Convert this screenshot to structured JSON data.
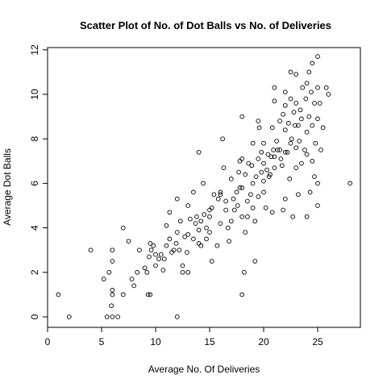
{
  "chart_data": {
    "type": "scatter",
    "title": "Scatter Plot of No. of Dot Balls vs No. of Deliveries",
    "xlabel": "Average No. Of Deliveries",
    "ylabel": "Average Dot Balls",
    "xlim": [
      0,
      28
    ],
    "ylim": [
      0,
      12
    ],
    "x_ticks": [
      "0",
      "5",
      "10",
      "15",
      "20",
      "25"
    ],
    "y_ticks": [
      "0",
      "2",
      "4",
      "6",
      "8",
      "10",
      "12"
    ],
    "grid": false,
    "legend": "none",
    "marker": "open-circle",
    "points": [
      [
        1,
        1
      ],
      [
        2,
        0
      ],
      [
        4,
        3
      ],
      [
        5.2,
        1.7
      ],
      [
        5.5,
        0
      ],
      [
        5.7,
        2
      ],
      [
        5.9,
        0.5
      ],
      [
        6,
        1
      ],
      [
        6,
        2.5
      ],
      [
        6,
        3
      ],
      [
        6,
        1.2
      ],
      [
        6,
        0
      ],
      [
        6.5,
        0
      ],
      [
        7,
        4
      ],
      [
        7,
        1
      ],
      [
        7.5,
        3.4
      ],
      [
        7.8,
        1.7
      ],
      [
        8,
        1.4
      ],
      [
        8.3,
        2
      ],
      [
        8.5,
        3
      ],
      [
        9,
        2.2
      ],
      [
        9.2,
        2
      ],
      [
        9.3,
        1
      ],
      [
        9.4,
        2.7
      ],
      [
        9.5,
        1
      ],
      [
        9.5,
        3.3
      ],
      [
        9.6,
        3
      ],
      [
        9.8,
        3.2
      ],
      [
        10,
        2.8
      ],
      [
        10,
        2.3
      ],
      [
        10.3,
        2.6
      ],
      [
        10.5,
        2.8
      ],
      [
        10.7,
        2.1
      ],
      [
        10.8,
        2.6
      ],
      [
        11,
        3.2
      ],
      [
        11,
        4.1
      ],
      [
        11.3,
        4.7
      ],
      [
        11.3,
        3.5
      ],
      [
        11.5,
        2.9
      ],
      [
        11.7,
        3
      ],
      [
        11.9,
        3.3
      ],
      [
        12,
        3.8
      ],
      [
        12,
        5.3
      ],
      [
        12,
        0
      ],
      [
        12.2,
        3
      ],
      [
        12.3,
        4.3
      ],
      [
        12.5,
        2.3
      ],
      [
        12.5,
        2
      ],
      [
        12.7,
        3.6
      ],
      [
        12.9,
        2.9
      ],
      [
        13,
        2
      ],
      [
        13,
        3.7
      ],
      [
        13,
        5
      ],
      [
        13.2,
        4.4
      ],
      [
        13.5,
        5.6
      ],
      [
        13.5,
        3.5
      ],
      [
        13.7,
        4.2
      ],
      [
        13.8,
        4.5
      ],
      [
        14,
        3.9
      ],
      [
        14,
        3.3
      ],
      [
        14,
        7.4
      ],
      [
        14.2,
        4.3
      ],
      [
        14.2,
        3.2
      ],
      [
        14.4,
        6
      ],
      [
        14.5,
        4.6
      ],
      [
        14.7,
        3.5
      ],
      [
        14.7,
        4
      ],
      [
        15,
        4.8
      ],
      [
        15,
        4.5
      ],
      [
        15,
        3.8
      ],
      [
        15.2,
        4.9
      ],
      [
        15.2,
        2.5
      ],
      [
        15.4,
        5.5
      ],
      [
        15.7,
        3.2
      ],
      [
        15.8,
        5.3
      ],
      [
        16,
        5.6
      ],
      [
        16,
        4.2
      ],
      [
        16,
        5.5
      ],
      [
        16.2,
        8
      ],
      [
        16.3,
        6.7
      ],
      [
        16.5,
        4.8
      ],
      [
        16.5,
        5.2
      ],
      [
        16.7,
        4
      ],
      [
        16.8,
        3.4
      ],
      [
        17,
        4.3
      ],
      [
        17,
        6.2
      ],
      [
        17.2,
        5.3
      ],
      [
        17.3,
        4.8
      ],
      [
        17.5,
        5.6
      ],
      [
        17.6,
        5
      ],
      [
        17.7,
        6.5
      ],
      [
        17.8,
        5.8
      ],
      [
        17.8,
        7
      ],
      [
        18,
        4.5
      ],
      [
        18,
        5.8
      ],
      [
        18,
        7.1
      ],
      [
        18,
        9
      ],
      [
        18.2,
        2
      ],
      [
        18,
        1
      ],
      [
        18.3,
        3.8
      ],
      [
        18.3,
        6.4
      ],
      [
        18.5,
        4.5
      ],
      [
        18.5,
        5.2
      ],
      [
        18.6,
        6.9
      ],
      [
        18.8,
        5.5
      ],
      [
        18.9,
        6.8
      ],
      [
        19,
        7.8
      ],
      [
        19,
        4.9
      ],
      [
        19,
        6
      ],
      [
        19.2,
        4.3
      ],
      [
        19.2,
        2.5
      ],
      [
        19.3,
        6.3
      ],
      [
        19.5,
        8.8
      ],
      [
        19.5,
        7.1
      ],
      [
        19.5,
        5.4
      ],
      [
        19.6,
        8.5
      ],
      [
        19.8,
        6.5
      ],
      [
        19.8,
        7.4
      ],
      [
        20,
        6.9
      ],
      [
        20,
        5.6
      ],
      [
        20,
        6.1
      ],
      [
        20,
        7.8
      ],
      [
        20.2,
        4.9
      ],
      [
        20.3,
        6.6
      ],
      [
        20.4,
        7.3
      ],
      [
        20.5,
        6.3
      ],
      [
        20.6,
        6.4
      ],
      [
        20.7,
        7.2
      ],
      [
        20.8,
        8.5
      ],
      [
        20.8,
        4.7
      ],
      [
        20.9,
        7.5
      ],
      [
        21,
        7.2
      ],
      [
        21,
        6.7
      ],
      [
        21,
        9.7
      ],
      [
        21,
        10.3
      ],
      [
        21.2,
        7.9
      ],
      [
        21.3,
        7.5
      ],
      [
        21.5,
        7.5
      ],
      [
        21.5,
        8.8
      ],
      [
        21.6,
        7.1
      ],
      [
        21.7,
        6.8
      ],
      [
        21.8,
        9.1
      ],
      [
        21.8,
        4.8
      ],
      [
        22,
        7.4
      ],
      [
        22,
        8.4
      ],
      [
        22,
        9.5
      ],
      [
        22,
        10.1
      ],
      [
        22,
        5.3
      ],
      [
        22.2,
        7.4
      ],
      [
        22.3,
        8.7
      ],
      [
        22.4,
        6.2
      ],
      [
        22.5,
        7.8
      ],
      [
        22.5,
        9.8
      ],
      [
        22.5,
        11
      ],
      [
        22.6,
        8
      ],
      [
        22.7,
        4.5
      ],
      [
        22.8,
        9.2
      ],
      [
        22.9,
        8.6
      ],
      [
        23,
        7.6
      ],
      [
        23,
        6.7
      ],
      [
        23,
        9.6
      ],
      [
        23,
        10.9
      ],
      [
        23.2,
        8.6
      ],
      [
        23.2,
        5.5
      ],
      [
        23.3,
        7.9
      ],
      [
        23.4,
        9.3
      ],
      [
        23.5,
        8.9
      ],
      [
        23.5,
        6.9
      ],
      [
        23.6,
        10.3
      ],
      [
        23.8,
        7.5
      ],
      [
        23.9,
        9.8
      ],
      [
        24,
        8.3
      ],
      [
        24,
        7.3
      ],
      [
        24,
        10.5
      ],
      [
        24,
        4.5
      ],
      [
        24.2,
        11
      ],
      [
        24.2,
        9
      ],
      [
        24.3,
        5.6
      ],
      [
        24.4,
        10.1
      ],
      [
        24.5,
        8.6
      ],
      [
        24.5,
        11.4
      ],
      [
        24.5,
        7
      ],
      [
        24.7,
        9.6
      ],
      [
        24.7,
        6.3
      ],
      [
        24.8,
        7.8
      ],
      [
        25,
        6
      ],
      [
        25,
        10.3
      ],
      [
        25,
        8.9
      ],
      [
        25,
        11.7
      ],
      [
        25,
        5
      ],
      [
        25.2,
        9.6
      ],
      [
        25.3,
        7.5
      ],
      [
        25.5,
        8.5
      ],
      [
        25.8,
        10.3
      ],
      [
        26,
        10
      ],
      [
        28,
        6
      ]
    ]
  }
}
